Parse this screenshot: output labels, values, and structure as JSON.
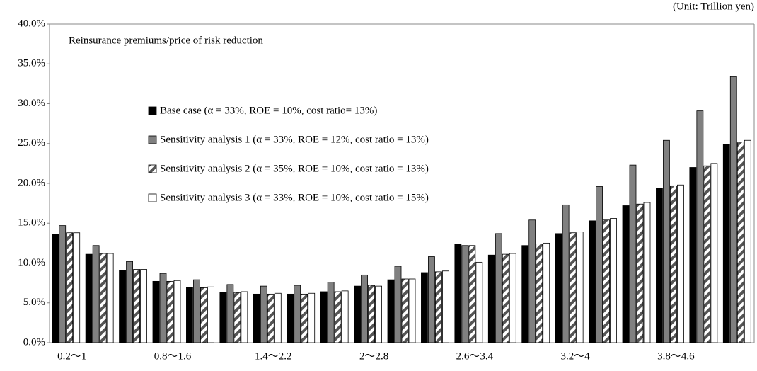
{
  "chart_data": {
    "type": "bar",
    "title": "Reinsurance premiums/price of risk reduction",
    "unit_note": "(Unit: Trillion yen)",
    "categories": [
      "0.2〜1",
      null,
      null,
      "0.8〜1.6",
      null,
      null,
      "1.4〜2.2",
      null,
      null,
      "2〜2.8",
      null,
      null,
      "2.6〜3.4",
      null,
      null,
      "3.2〜4",
      null,
      null,
      "3.8〜4.6",
      null,
      null
    ],
    "series": [
      {
        "name": "Base case (α = 33%, ROE = 10%, cost ratio= 13%)",
        "color": "#000000",
        "values": [
          13.6,
          11.1,
          9.1,
          7.7,
          6.9,
          6.3,
          6.1,
          6.1,
          6.4,
          7.1,
          7.9,
          8.8,
          12.4,
          11.0,
          12.2,
          13.7,
          15.3,
          17.2,
          19.4,
          22.0,
          24.9
        ]
      },
      {
        "name": "Sensitivity analysis 1 (α = 33%, ROE = 12%, cost ratio = 13%)",
        "color": "#808080",
        "values": [
          14.7,
          12.2,
          10.2,
          8.7,
          7.9,
          7.3,
          7.1,
          7.2,
          7.6,
          8.5,
          9.6,
          10.8,
          12.2,
          13.7,
          15.4,
          17.3,
          19.6,
          22.3,
          25.4,
          29.1,
          33.4
        ]
      },
      {
        "name": "Sensitivity analysis 2 (α = 35%, ROE = 10%, cost ratio = 13%)",
        "color": "#555555",
        "pattern": "hatch",
        "values": [
          13.8,
          11.2,
          9.2,
          7.7,
          6.9,
          6.3,
          6.1,
          6.1,
          6.4,
          7.2,
          8.0,
          8.9,
          12.2,
          11.1,
          12.4,
          13.8,
          15.4,
          17.4,
          19.7,
          22.2,
          25.2
        ]
      },
      {
        "name": "Sensitivity analysis 3 (α = 33%, ROE = 10%, cost ratio = 15%)",
        "color": "#ffffff",
        "values": [
          13.8,
          11.2,
          9.2,
          7.8,
          7.0,
          6.4,
          6.2,
          6.2,
          6.5,
          7.1,
          8.0,
          9.0,
          10.1,
          11.2,
          12.5,
          13.9,
          15.6,
          17.6,
          19.8,
          22.5,
          25.4
        ]
      }
    ],
    "ylim": [
      0,
      40
    ],
    "yticks": [
      {
        "value": 0,
        "label": "0.0%"
      },
      {
        "value": 5,
        "label": "5.0%"
      },
      {
        "value": 10,
        "label": "10.0%"
      },
      {
        "value": 15,
        "label": "15.0%"
      },
      {
        "value": 20,
        "label": "20.0%"
      },
      {
        "value": 25,
        "label": "25.0%"
      },
      {
        "value": 30,
        "label": "30.0%"
      },
      {
        "value": 35,
        "label": "35.0%"
      },
      {
        "value": 40,
        "label": "40.0%"
      }
    ]
  }
}
